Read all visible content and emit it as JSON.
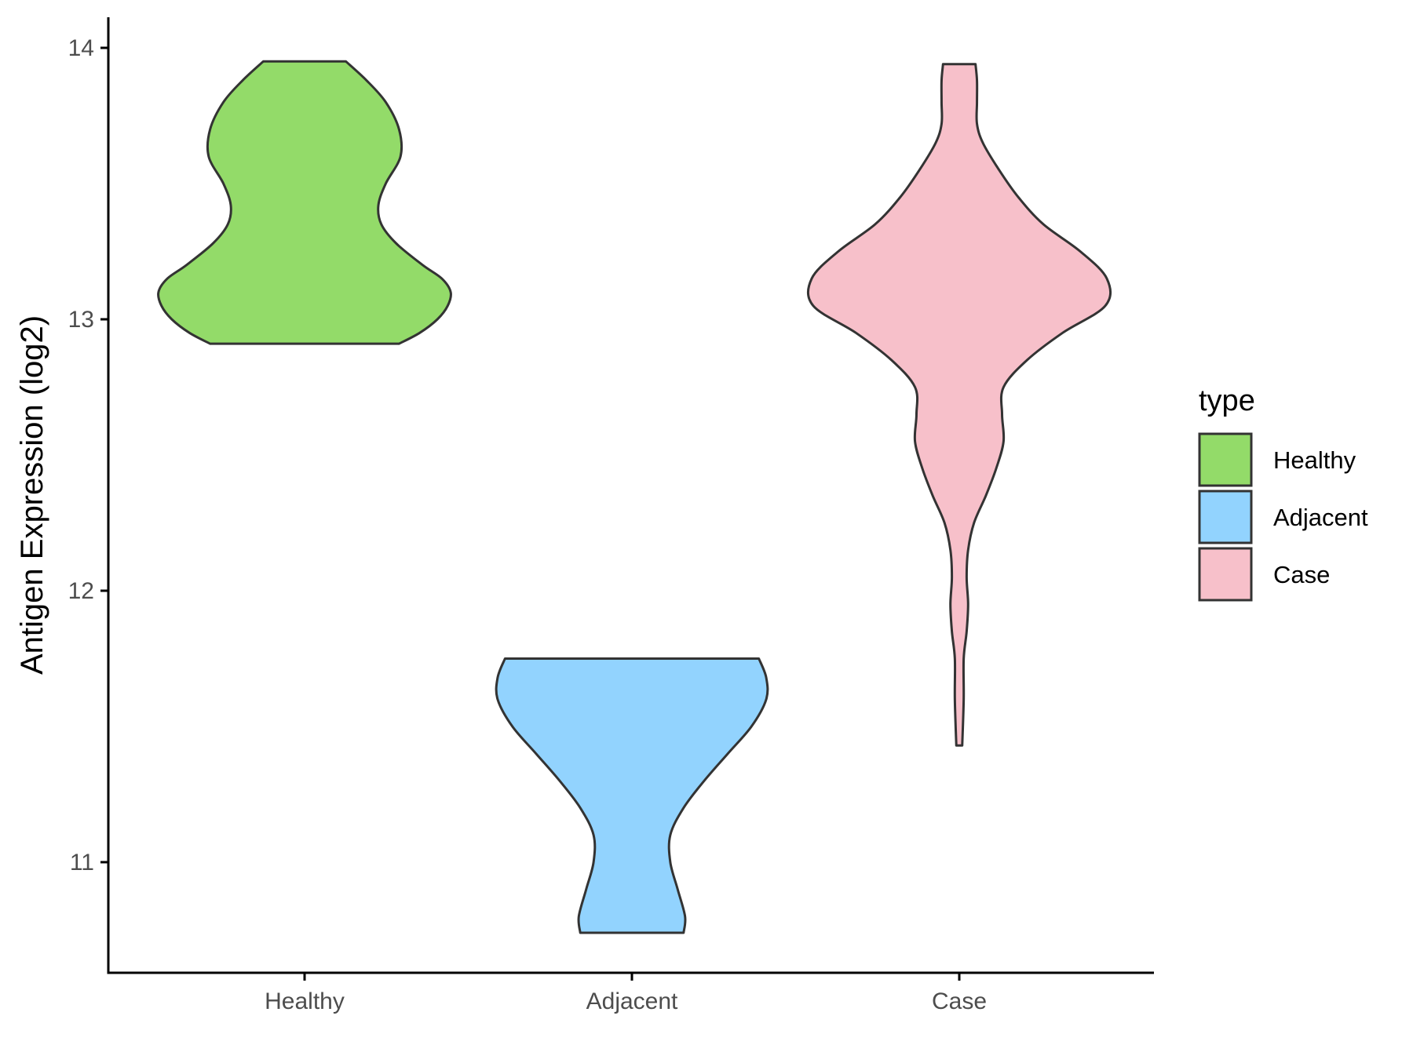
{
  "chart_data": {
    "type": "violin",
    "title": "",
    "xlabel": "",
    "ylabel": "Antigen Expression (log2)",
    "ylim": [
      10.6,
      14.1
    ],
    "yticks": [
      11,
      12,
      13,
      14
    ],
    "categories": [
      "Healthy",
      "Adjacent",
      "Case"
    ],
    "grid": false,
    "legend": {
      "title": "type",
      "position": "right",
      "entries": [
        "Healthy",
        "Adjacent",
        "Case"
      ]
    },
    "series": [
      {
        "name": "Healthy",
        "color": "#93DB69",
        "min": 12.91,
        "max": 13.95,
        "density_profile": [
          [
            12.91,
            0.64
          ],
          [
            12.95,
            0.78
          ],
          [
            13.0,
            0.9
          ],
          [
            13.05,
            0.97
          ],
          [
            13.1,
            0.99
          ],
          [
            13.15,
            0.93
          ],
          [
            13.2,
            0.8
          ],
          [
            13.28,
            0.62
          ],
          [
            13.35,
            0.52
          ],
          [
            13.42,
            0.5
          ],
          [
            13.5,
            0.55
          ],
          [
            13.6,
            0.65
          ],
          [
            13.7,
            0.64
          ],
          [
            13.8,
            0.55
          ],
          [
            13.88,
            0.42
          ],
          [
            13.95,
            0.28
          ]
        ]
      },
      {
        "name": "Adjacent",
        "color": "#92D3FE",
        "min": 10.74,
        "max": 11.75,
        "density_profile": [
          [
            10.74,
            0.35
          ],
          [
            10.8,
            0.36
          ],
          [
            10.9,
            0.31
          ],
          [
            11.0,
            0.26
          ],
          [
            11.1,
            0.26
          ],
          [
            11.2,
            0.35
          ],
          [
            11.3,
            0.49
          ],
          [
            11.4,
            0.65
          ],
          [
            11.5,
            0.81
          ],
          [
            11.6,
            0.91
          ],
          [
            11.68,
            0.91
          ],
          [
            11.75,
            0.86
          ]
        ]
      },
      {
        "name": "Case",
        "color": "#F7C0CA",
        "min": 11.43,
        "max": 13.94,
        "density_profile": [
          [
            11.43,
            0.02
          ],
          [
            11.6,
            0.03
          ],
          [
            11.75,
            0.03
          ],
          [
            11.85,
            0.05
          ],
          [
            11.95,
            0.06
          ],
          [
            12.05,
            0.05
          ],
          [
            12.15,
            0.06
          ],
          [
            12.25,
            0.1
          ],
          [
            12.35,
            0.18
          ],
          [
            12.45,
            0.25
          ],
          [
            12.55,
            0.3
          ],
          [
            12.65,
            0.29
          ],
          [
            12.75,
            0.3
          ],
          [
            12.85,
            0.46
          ],
          [
            12.95,
            0.7
          ],
          [
            13.05,
            0.99
          ],
          [
            13.15,
            1.0
          ],
          [
            13.25,
            0.82
          ],
          [
            13.35,
            0.57
          ],
          [
            13.45,
            0.4
          ],
          [
            13.55,
            0.27
          ],
          [
            13.65,
            0.16
          ],
          [
            13.72,
            0.12
          ],
          [
            13.8,
            0.12
          ],
          [
            13.88,
            0.12
          ],
          [
            13.94,
            0.11
          ]
        ]
      }
    ]
  }
}
